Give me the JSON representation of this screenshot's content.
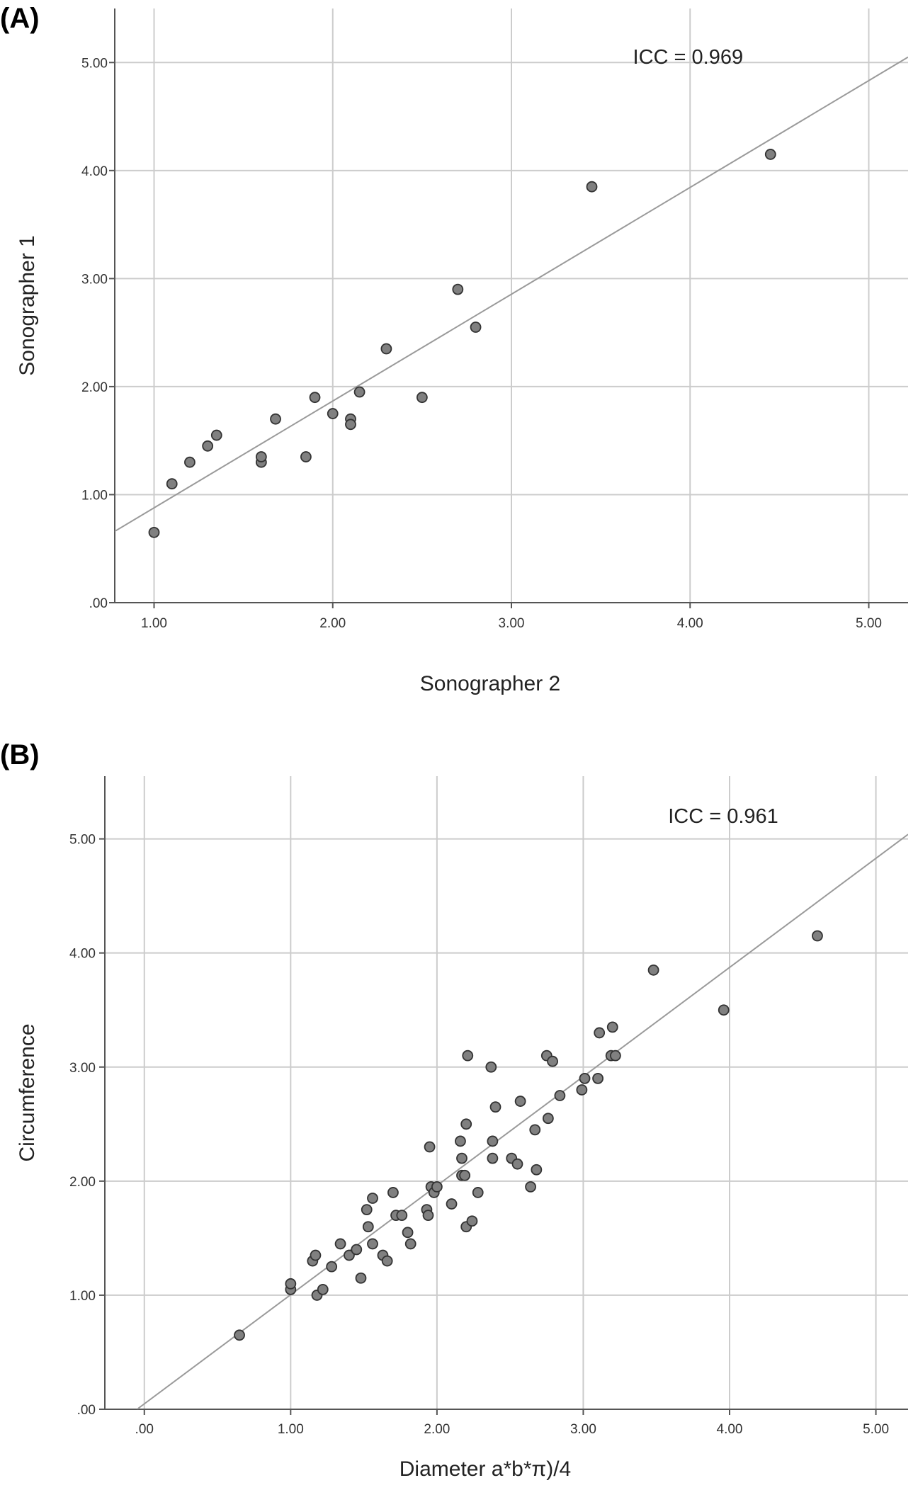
{
  "chart_data": [
    {
      "panel_label": "(A)",
      "type": "scatter",
      "xlabel": "Sonographer 2",
      "ylabel": "Sonographer 1",
      "xlim": [
        0.78,
        5.22
      ],
      "ylim": [
        0,
        5.5
      ],
      "xticks": [
        1.0,
        2.0,
        3.0,
        4.0,
        5.0
      ],
      "xtick_labels": [
        "1.00",
        "2.00",
        "3.00",
        "4.00",
        "5.00"
      ],
      "yticks": [
        0,
        1.0,
        2.0,
        3.0,
        4.0,
        5.0
      ],
      "ytick_labels": [
        ".00",
        "1.00",
        "2.00",
        "3.00",
        "4.00",
        "5.00"
      ],
      "grid": true,
      "annotation": "ICC = 0.969",
      "fit_line": {
        "x": [
          0.78,
          5.22
        ],
        "y": [
          0.66,
          5.05
        ]
      },
      "colors": {
        "point": "#808080",
        "point_edge": "#333333",
        "grid": "#cccccc",
        "line": "#9a9a9a"
      },
      "points": [
        {
          "x": 1.0,
          "y": 0.65
        },
        {
          "x": 1.1,
          "y": 1.1
        },
        {
          "x": 1.2,
          "y": 1.3
        },
        {
          "x": 1.3,
          "y": 1.45
        },
        {
          "x": 1.35,
          "y": 1.55
        },
        {
          "x": 1.6,
          "y": 1.3
        },
        {
          "x": 1.6,
          "y": 1.35
        },
        {
          "x": 1.68,
          "y": 1.7
        },
        {
          "x": 1.85,
          "y": 1.35
        },
        {
          "x": 1.9,
          "y": 1.9
        },
        {
          "x": 2.0,
          "y": 1.75
        },
        {
          "x": 2.1,
          "y": 1.7
        },
        {
          "x": 2.1,
          "y": 1.65
        },
        {
          "x": 2.15,
          "y": 1.95
        },
        {
          "x": 2.3,
          "y": 2.35
        },
        {
          "x": 2.5,
          "y": 1.9
        },
        {
          "x": 2.7,
          "y": 2.9
        },
        {
          "x": 2.8,
          "y": 2.55
        },
        {
          "x": 3.45,
          "y": 3.85
        },
        {
          "x": 4.45,
          "y": 4.15
        }
      ]
    },
    {
      "panel_label": "(B)",
      "type": "scatter",
      "xlabel": "Diameter a*b*π)/4",
      "ylabel": "Circumference",
      "xlim": [
        -0.27,
        5.22
      ],
      "ylim": [
        0,
        5.55
      ],
      "xticks": [
        0,
        1.0,
        2.0,
        3.0,
        4.0,
        5.0
      ],
      "xtick_labels": [
        ".00",
        "1.00",
        "2.00",
        "3.00",
        "4.00",
        "5.00"
      ],
      "yticks": [
        0,
        1.0,
        2.0,
        3.0,
        4.0,
        5.0
      ],
      "ytick_labels": [
        ".00",
        "1.00",
        "2.00",
        "3.00",
        "4.00",
        "5.00"
      ],
      "grid": true,
      "annotation": "ICC = 0.961",
      "fit_line": {
        "x": [
          -0.05,
          5.22
        ],
        "y": [
          0.0,
          5.04
        ]
      },
      "colors": {
        "point": "#808080",
        "point_edge": "#333333",
        "grid": "#cccccc",
        "line": "#9a9a9a"
      },
      "points": [
        {
          "x": 0.65,
          "y": 0.65
        },
        {
          "x": 1.0,
          "y": 1.05
        },
        {
          "x": 1.0,
          "y": 1.1
        },
        {
          "x": 1.15,
          "y": 1.3
        },
        {
          "x": 1.17,
          "y": 1.35
        },
        {
          "x": 1.18,
          "y": 1.0
        },
        {
          "x": 1.22,
          "y": 1.05
        },
        {
          "x": 1.28,
          "y": 1.25
        },
        {
          "x": 1.34,
          "y": 1.45
        },
        {
          "x": 1.4,
          "y": 1.35
        },
        {
          "x": 1.45,
          "y": 1.4
        },
        {
          "x": 1.48,
          "y": 1.15
        },
        {
          "x": 1.52,
          "y": 1.75
        },
        {
          "x": 1.53,
          "y": 1.6
        },
        {
          "x": 1.56,
          "y": 1.45
        },
        {
          "x": 1.56,
          "y": 1.85
        },
        {
          "x": 1.63,
          "y": 1.35
        },
        {
          "x": 1.66,
          "y": 1.3
        },
        {
          "x": 1.7,
          "y": 1.9
        },
        {
          "x": 1.72,
          "y": 1.7
        },
        {
          "x": 1.76,
          "y": 1.7
        },
        {
          "x": 1.8,
          "y": 1.55
        },
        {
          "x": 1.82,
          "y": 1.45
        },
        {
          "x": 1.93,
          "y": 1.75
        },
        {
          "x": 1.94,
          "y": 1.7
        },
        {
          "x": 1.95,
          "y": 2.3
        },
        {
          "x": 1.96,
          "y": 1.95
        },
        {
          "x": 1.98,
          "y": 1.9
        },
        {
          "x": 2.0,
          "y": 1.95
        },
        {
          "x": 2.1,
          "y": 1.8
        },
        {
          "x": 2.16,
          "y": 2.35
        },
        {
          "x": 2.17,
          "y": 2.2
        },
        {
          "x": 2.17,
          "y": 2.05
        },
        {
          "x": 2.19,
          "y": 2.05
        },
        {
          "x": 2.2,
          "y": 2.5
        },
        {
          "x": 2.2,
          "y": 1.6
        },
        {
          "x": 2.21,
          "y": 3.1
        },
        {
          "x": 2.24,
          "y": 1.65
        },
        {
          "x": 2.28,
          "y": 1.9
        },
        {
          "x": 2.37,
          "y": 3.0
        },
        {
          "x": 2.38,
          "y": 2.35
        },
        {
          "x": 2.38,
          "y": 2.2
        },
        {
          "x": 2.4,
          "y": 2.65
        },
        {
          "x": 2.51,
          "y": 2.2
        },
        {
          "x": 2.55,
          "y": 2.15
        },
        {
          "x": 2.57,
          "y": 2.7
        },
        {
          "x": 2.64,
          "y": 1.95
        },
        {
          "x": 2.67,
          "y": 2.45
        },
        {
          "x": 2.68,
          "y": 2.1
        },
        {
          "x": 2.75,
          "y": 3.1
        },
        {
          "x": 2.76,
          "y": 2.55
        },
        {
          "x": 2.79,
          "y": 3.05
        },
        {
          "x": 2.84,
          "y": 2.75
        },
        {
          "x": 2.99,
          "y": 2.8
        },
        {
          "x": 3.01,
          "y": 2.9
        },
        {
          "x": 3.1,
          "y": 2.9
        },
        {
          "x": 3.11,
          "y": 3.3
        },
        {
          "x": 3.19,
          "y": 3.1
        },
        {
          "x": 3.2,
          "y": 3.35
        },
        {
          "x": 3.22,
          "y": 3.1
        },
        {
          "x": 3.48,
          "y": 3.85
        },
        {
          "x": 3.96,
          "y": 3.5
        },
        {
          "x": 4.6,
          "y": 4.15
        }
      ]
    }
  ]
}
